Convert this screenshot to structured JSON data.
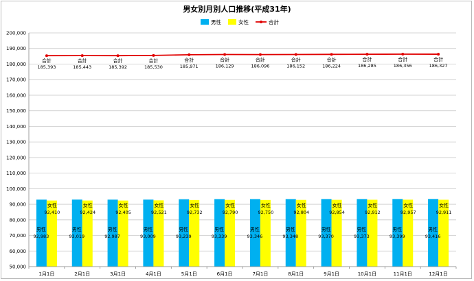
{
  "chart_data": {
    "type": "bar",
    "title": "男女別月別人口推移(平成31年)",
    "categories": [
      "1月1日",
      "2月1日",
      "3月1日",
      "4月1日",
      "5月1日",
      "6月1日",
      "7月1日",
      "8月1日",
      "9月1日",
      "10月1日",
      "11月1日",
      "12月1日"
    ],
    "series": [
      {
        "name": "男性",
        "kind": "bar",
        "color": "#00b0f0",
        "values": [
          92983,
          93019,
          92987,
          93009,
          93239,
          93339,
          93346,
          93348,
          93370,
          93373,
          93399,
          93416
        ]
      },
      {
        "name": "女性",
        "kind": "bar",
        "color": "#ffff00",
        "values": [
          92410,
          92424,
          92405,
          92521,
          92732,
          92790,
          92750,
          92804,
          92854,
          92912,
          92957,
          92911
        ]
      },
      {
        "name": "合計",
        "kind": "line",
        "color": "#e00000",
        "values": [
          185393,
          185443,
          185392,
          185530,
          185971,
          186129,
          186096,
          186152,
          186224,
          186285,
          186356,
          186327
        ]
      }
    ],
    "ylim": [
      50000,
      200000
    ],
    "ytick_step": 10000,
    "grid": true,
    "legend_position": "top-center",
    "data_labels": true
  }
}
